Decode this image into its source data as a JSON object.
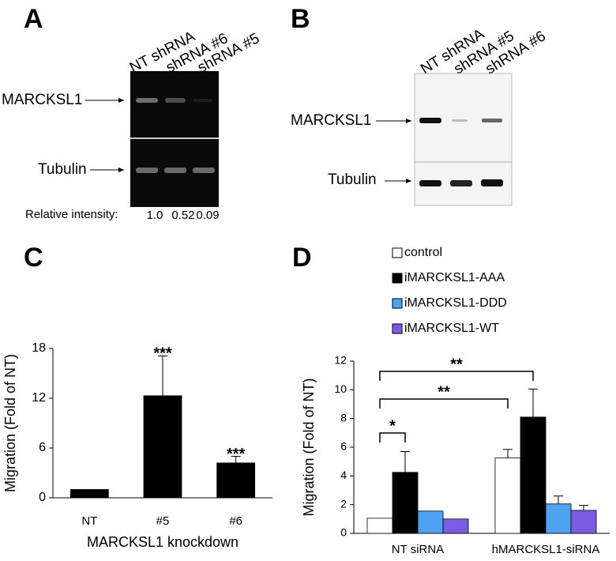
{
  "panel_a": {
    "letter": "A",
    "lanes": [
      "NT shRNA",
      "shRNA #6",
      "shRNA #5"
    ],
    "bands": [
      "MARCKSL1",
      "Tubulin"
    ],
    "intensity_label": "Relative intensity:",
    "intensities": [
      "1.0",
      "0.52",
      "0.09"
    ]
  },
  "panel_b": {
    "letter": "B",
    "lanes": [
      "NT shRNA",
      "shRNA #5",
      "shRNA #6"
    ],
    "bands": [
      "MARCKSL1",
      "Tubulin"
    ]
  },
  "chart_data": [
    {
      "type": "bar",
      "letter": "C",
      "y_label": "Migration (Fold of NT)",
      "x_label": "MARCKSL1 knockdown",
      "categories": [
        "NT",
        "#5",
        "#6"
      ],
      "values": [
        1,
        12.3,
        4.2
      ],
      "errors": [
        null,
        4.8,
        0.8
      ],
      "color": "#000000",
      "value_labels": [
        null,
        "***",
        "***"
      ],
      "ylim": [
        0,
        18
      ],
      "yticks": [
        0,
        6,
        12,
        18
      ]
    },
    {
      "type": "bar",
      "letter": "D",
      "y_label": "Migration (Fold of NT)",
      "categories": [
        "NT siRNA",
        "hMARCKSL1-siRNA"
      ],
      "series": [
        {
          "name": "control",
          "color": "#ffffff",
          "values": [
            1.05,
            5.25
          ],
          "errors": [
            null,
            0.6
          ]
        },
        {
          "name": "iMARCKSL1-AAA",
          "color": "#000000",
          "values": [
            4.25,
            8.1
          ],
          "errors": [
            1.45,
            1.95
          ]
        },
        {
          "name": "iMARCKSL1-DDD",
          "color": "#4da3f0",
          "values": [
            1.55,
            2.05
          ],
          "errors": [
            null,
            0.55
          ]
        },
        {
          "name": "iMARCKSL1-WT",
          "color": "#7b5ce0",
          "values": [
            1.0,
            1.6
          ],
          "errors": [
            null,
            0.35
          ]
        }
      ],
      "annotations": [
        "*",
        "**",
        "**"
      ],
      "ylim": [
        0,
        12
      ],
      "yticks": [
        0,
        2,
        4,
        6,
        8,
        10,
        12
      ]
    }
  ]
}
